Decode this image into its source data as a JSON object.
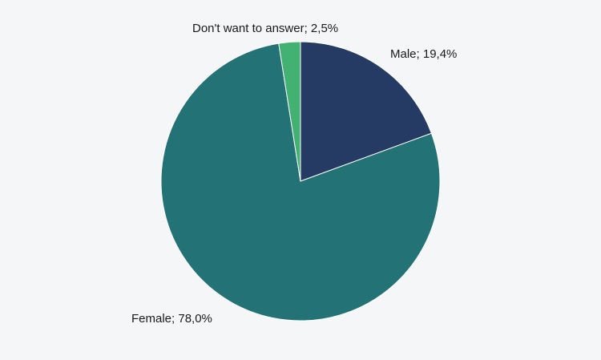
{
  "chart_data": {
    "type": "pie",
    "title": "",
    "slices": [
      {
        "label": "Male; 19,4%",
        "name": "Male",
        "value": 19.4,
        "color": "#253b63"
      },
      {
        "label": "Female; 78,0%",
        "name": "Female",
        "value": 78.0,
        "color": "#237275"
      },
      {
        "label": "Don't want to answer; 2,5%",
        "name": "Don't want to answer",
        "value": 2.5,
        "color": "#43b172"
      }
    ],
    "legend": "none",
    "start_angle": "12 o'clock, clockwise"
  }
}
